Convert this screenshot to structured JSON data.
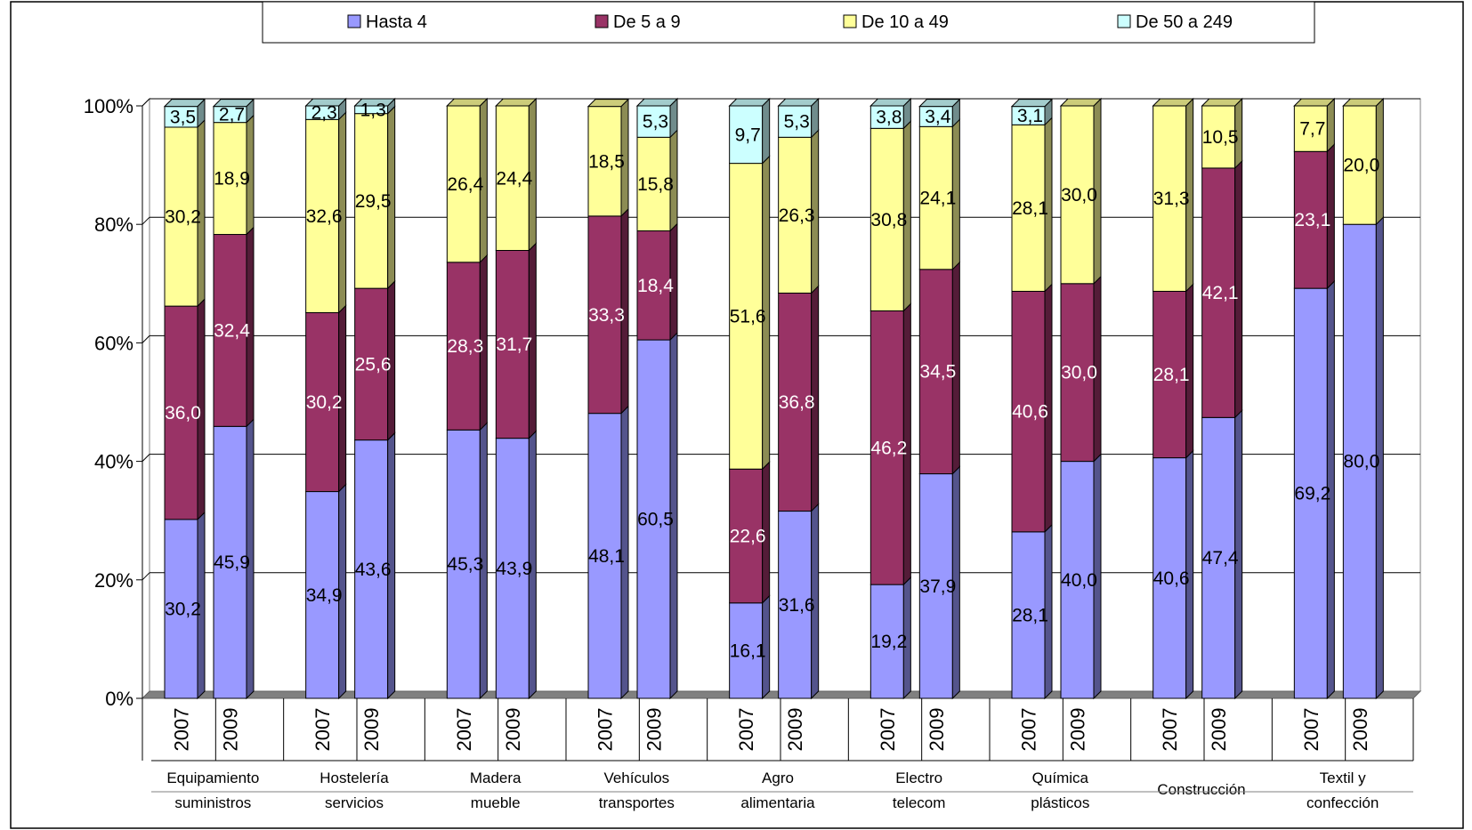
{
  "chart_data": {
    "type": "bar",
    "stacked": true,
    "percent_stacked": true,
    "three_d": true,
    "grid": true,
    "legend_position": "top",
    "ylim": [
      0,
      100
    ],
    "y_ticks": [
      "0%",
      "20%",
      "40%",
      "60%",
      "80%",
      "100%"
    ],
    "series_names": [
      "Hasta 4",
      "De 5 a 9",
      "De 10 a 49",
      "De 50 a 249"
    ],
    "series_colors": [
      "#9999ff",
      "#993366",
      "#ffff99",
      "#ccffff"
    ],
    "series_label_colors": [
      "#000000",
      "#ffffff",
      "#000000",
      "#000000"
    ],
    "groups": [
      {
        "category_lines": [
          "Equipamiento",
          "suministros"
        ],
        "bars": [
          {
            "year": "2007",
            "values": [
              30.2,
              36.0,
              30.2,
              3.5
            ],
            "labels": [
              "30,2",
              "36,0",
              "30,2",
              "3,5"
            ]
          },
          {
            "year": "2009",
            "values": [
              45.9,
              32.4,
              18.9,
              2.7
            ],
            "labels": [
              "45,9",
              "32,4",
              "18,9",
              "2,7"
            ]
          }
        ]
      },
      {
        "category_lines": [
          "Hostelería",
          "servicios"
        ],
        "bars": [
          {
            "year": "2007",
            "values": [
              34.9,
              30.2,
              32.6,
              2.3
            ],
            "labels": [
              "34,9",
              "30,2",
              "32,6",
              "2,3"
            ]
          },
          {
            "year": "2009",
            "values": [
              43.6,
              25.6,
              29.5,
              1.3
            ],
            "labels": [
              "43,6",
              "25,6",
              "29,5",
              "1,3"
            ]
          }
        ]
      },
      {
        "category_lines": [
          "Madera",
          "mueble"
        ],
        "bars": [
          {
            "year": "2007",
            "values": [
              45.3,
              28.3,
              26.4,
              0
            ],
            "labels": [
              "45,3",
              "28,3",
              "26,4",
              ""
            ]
          },
          {
            "year": "2009",
            "values": [
              43.9,
              31.7,
              24.4,
              0
            ],
            "labels": [
              "43,9",
              "31,7",
              "24,4",
              ""
            ]
          }
        ]
      },
      {
        "category_lines": [
          "Vehículos",
          "transportes"
        ],
        "bars": [
          {
            "year": "2007",
            "values": [
              48.1,
              33.3,
              18.5,
              0
            ],
            "labels": [
              "48,1",
              "33,3",
              "18,5",
              ""
            ]
          },
          {
            "year": "2009",
            "values": [
              60.5,
              18.4,
              15.8,
              5.3
            ],
            "labels": [
              "60,5",
              "18,4",
              "15,8",
              "5,3"
            ]
          }
        ]
      },
      {
        "category_lines": [
          "Agro",
          "alimentaria"
        ],
        "bars": [
          {
            "year": "2007",
            "values": [
              16.1,
              22.6,
              51.6,
              9.7
            ],
            "labels": [
              "16,1",
              "22,6",
              "51,6",
              "9,7"
            ]
          },
          {
            "year": "2009",
            "values": [
              31.6,
              36.8,
              26.3,
              5.3
            ],
            "labels": [
              "31,6",
              "36,8",
              "26,3",
              "5,3"
            ]
          }
        ]
      },
      {
        "category_lines": [
          "Electro",
          "telecom"
        ],
        "bars": [
          {
            "year": "2007",
            "values": [
              19.2,
              46.2,
              30.8,
              3.8
            ],
            "labels": [
              "19,2",
              "46,2",
              "30,8",
              "3,8"
            ]
          },
          {
            "year": "2009",
            "values": [
              37.9,
              34.5,
              24.1,
              3.4
            ],
            "labels": [
              "37,9",
              "34,5",
              "24,1",
              "3,4"
            ]
          }
        ]
      },
      {
        "category_lines": [
          "Química",
          "plásticos"
        ],
        "bars": [
          {
            "year": "2007",
            "values": [
              28.1,
              40.6,
              28.1,
              3.1
            ],
            "labels": [
              "28,1",
              "40,6",
              "28,1",
              "3,1"
            ]
          },
          {
            "year": "2009",
            "values": [
              40.0,
              30.0,
              30.0,
              0
            ],
            "labels": [
              "40,0",
              "30,0",
              "30,0",
              ""
            ]
          }
        ]
      },
      {
        "category_lines": [
          "Construcción"
        ],
        "bars": [
          {
            "year": "2007",
            "values": [
              40.6,
              28.1,
              31.3,
              0
            ],
            "labels": [
              "40,6",
              "28,1",
              "31,3",
              ""
            ]
          },
          {
            "year": "2009",
            "values": [
              47.4,
              42.1,
              10.5,
              0
            ],
            "labels": [
              "47,4",
              "42,1",
              "10,5",
              ""
            ]
          }
        ]
      },
      {
        "category_lines": [
          "Textil y",
          "confección"
        ],
        "bars": [
          {
            "year": "2007",
            "values": [
              69.2,
              23.1,
              7.7,
              0
            ],
            "labels": [
              "69,2",
              "23,1",
              "7,7",
              ""
            ]
          },
          {
            "year": "2009",
            "values": [
              80.0,
              0,
              20.0,
              0
            ],
            "labels": [
              "80,0",
              "",
              "20,0",
              ""
            ]
          }
        ]
      }
    ]
  }
}
